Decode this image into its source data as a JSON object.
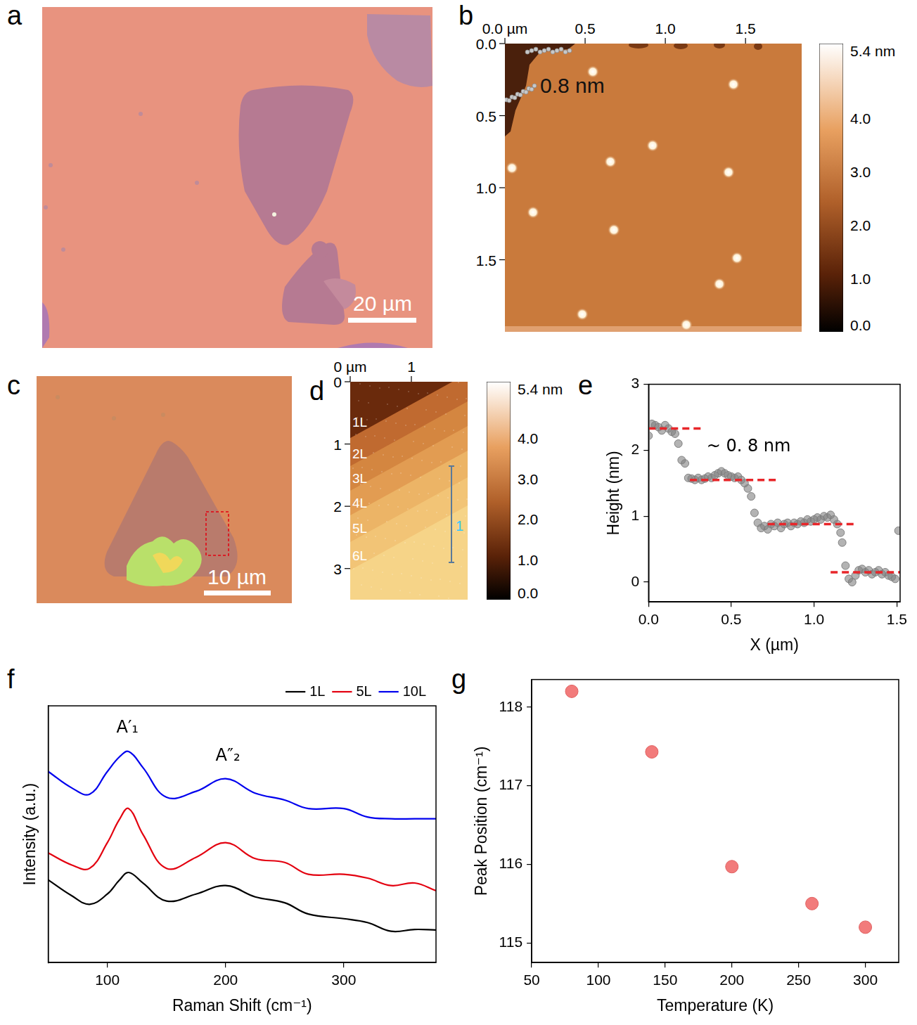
{
  "images": [
    {
      "panel": "a",
      "type": "optical",
      "scale_bar": "20 µm"
    },
    {
      "panel": "b",
      "type": "afm",
      "xlim": [
        0,
        1.85
      ],
      "xticks": [
        {
          "value": 0,
          "label": "0.0 µm"
        },
        0.5,
        {
          "value": 1,
          "label": "1.0"
        },
        1.5
      ],
      "ylim": [
        0,
        2.0
      ],
      "yticks": [
        {
          "value": 0,
          "label": "0.0"
        },
        0.5,
        {
          "value": 1,
          "label": "1.0"
        },
        1.5
      ],
      "annotation": "0.8 nm",
      "colorbar": {
        "range": [
          0,
          5.4
        ],
        "ticks": [
          {
            "value": 5.4,
            "label": "5.4 nm"
          },
          {
            "value": 4,
            "label": "4.0"
          },
          {
            "value": 3,
            "label": "3.0"
          },
          {
            "value": 2,
            "label": "2.0"
          },
          {
            "value": 1,
            "label": "1.0"
          },
          {
            "value": 0,
            "label": "0.0"
          }
        ]
      }
    },
    {
      "panel": "c",
      "type": "optical",
      "scale_bar": "10 µm"
    },
    {
      "panel": "d",
      "type": "afm",
      "xlim": [
        0,
        1.92
      ],
      "xticks": [
        {
          "value": 0,
          "label": "0 µm"
        },
        1
      ],
      "ylim": [
        0,
        3.5
      ],
      "yticks": [
        0,
        1,
        2,
        3
      ],
      "layers": [
        "1L",
        "2L",
        "3L",
        "4L",
        "5L",
        "6L"
      ],
      "profile_label": "1",
      "colorbar": {
        "range": [
          0,
          5.4
        ],
        "ticks": [
          {
            "value": 5.4,
            "label": "5.4 nm"
          },
          {
            "value": 4,
            "label": "4.0"
          },
          {
            "value": 3,
            "label": "3.0"
          },
          {
            "value": 2,
            "label": "2.0"
          },
          {
            "value": 1,
            "label": "1.0"
          },
          {
            "value": 0,
            "label": "0.0"
          }
        ]
      }
    }
  ],
  "chart_data": [
    {
      "panel": "e",
      "type": "scatter",
      "x_label": "X (µm)",
      "y_label": "Height (nm)",
      "x": [
        0.0,
        0.02,
        0.04,
        0.06,
        0.08,
        0.1,
        0.12,
        0.14,
        0.16,
        0.18,
        0.2,
        0.22,
        0.24,
        0.26,
        0.28,
        0.3,
        0.32,
        0.34,
        0.36,
        0.38,
        0.4,
        0.42,
        0.44,
        0.46,
        0.48,
        0.5,
        0.52,
        0.54,
        0.56,
        0.58,
        0.6,
        0.62,
        0.64,
        0.66,
        0.68,
        0.7,
        0.72,
        0.74,
        0.76,
        0.78,
        0.8,
        0.82,
        0.84,
        0.86,
        0.88,
        0.9,
        0.92,
        0.94,
        0.96,
        0.98,
        1.0,
        1.02,
        1.04,
        1.06,
        1.08,
        1.1,
        1.12,
        1.14,
        1.16,
        1.17,
        1.19,
        1.21,
        1.23,
        1.25,
        1.27,
        1.29,
        1.31,
        1.33,
        1.35,
        1.37,
        1.39,
        1.41,
        1.43,
        1.45,
        1.47,
        1.49,
        1.51
      ],
      "values": [
        2.22,
        2.4,
        2.38,
        2.35,
        2.3,
        2.38,
        2.33,
        2.28,
        2.25,
        2.1,
        1.85,
        1.8,
        1.58,
        1.57,
        1.55,
        1.58,
        1.55,
        1.57,
        1.6,
        1.58,
        1.62,
        1.65,
        1.68,
        1.65,
        1.62,
        1.6,
        1.58,
        1.6,
        1.55,
        1.5,
        1.42,
        1.3,
        1.05,
        0.9,
        0.82,
        0.85,
        0.8,
        0.88,
        0.85,
        0.9,
        0.82,
        0.88,
        0.9,
        0.85,
        0.9,
        0.88,
        0.92,
        0.9,
        0.95,
        0.92,
        0.95,
        0.98,
        0.95,
        1.0,
        0.98,
        1.02,
        0.95,
        0.88,
        0.75,
        0.6,
        0.25,
        0.05,
        0.0,
        0.1,
        0.18,
        0.2,
        0.15,
        0.18,
        0.12,
        0.15,
        0.18,
        0.12,
        0.15,
        0.1,
        0.08,
        0.05,
        0.78
      ],
      "color": "#808080",
      "marker": "circle",
      "levels": [
        {
          "x": [
            0,
            0.32
          ],
          "y": 2.33,
          "color": "#e8262a",
          "line_style": "dashed"
        },
        {
          "x": [
            0.25,
            0.78
          ],
          "y": 1.55,
          "color": "#e8262a",
          "line_style": "dashed"
        },
        {
          "x": [
            0.72,
            1.25
          ],
          "y": 0.88,
          "color": "#e8262a",
          "line_style": "dashed"
        },
        {
          "x": [
            1.1,
            1.52
          ],
          "y": 0.15,
          "color": "#e8262a",
          "line_style": "dashed"
        }
      ],
      "annotations": [
        {
          "text": "~ 0. 8 nm",
          "x": 0.35,
          "y": 2.05
        }
      ],
      "xlim": [
        0,
        1.52
      ],
      "xticks": [
        {
          "value": 0,
          "label": "0.0"
        },
        0.5,
        {
          "value": 1,
          "label": "1.0"
        },
        1.5
      ],
      "ylim": [
        -0.3,
        3
      ],
      "yticks": [
        0,
        1,
        2,
        3
      ],
      "grid": false
    },
    {
      "panel": "f",
      "type": "line",
      "x_label": "Raman Shift (cm⁻¹)",
      "y_label": "Intensity (a.u.)",
      "x": [
        50,
        70,
        85,
        100,
        110,
        118,
        130,
        150,
        175,
        200,
        225,
        250,
        270,
        300,
        320,
        340,
        360,
        378
      ],
      "series": [
        {
          "name": "1L",
          "color": "#000000",
          "values": [
            32.2,
            26,
            22.7,
            26.7,
            32,
            35.1,
            31,
            24,
            26.7,
            30,
            25.6,
            23.3,
            18.9,
            17.1,
            15.6,
            12.2,
            12.9,
            12.7
          ]
        },
        {
          "name": "5L",
          "color": "#e3000f",
          "values": [
            42.7,
            38,
            36.7,
            46.7,
            55.6,
            60,
            50,
            36.7,
            41,
            46.7,
            40.5,
            39,
            34.4,
            34.4,
            32.9,
            30,
            31,
            28
          ]
        },
        {
          "name": "10L",
          "color": "#0000ee",
          "values": [
            74.4,
            68,
            65.6,
            74.4,
            80,
            82.2,
            76,
            64.4,
            66.7,
            71.6,
            66,
            63.3,
            60,
            60,
            56.7,
            56,
            56,
            56
          ]
        }
      ],
      "annotations": [
        {
          "text": "A′₁",
          "x": 117,
          "y": 88
        },
        {
          "text": "A″₂",
          "x": 202,
          "y": 77
        }
      ],
      "xlim": [
        50,
        378
      ],
      "xticks": [
        100,
        200,
        300
      ],
      "ylim": [
        0,
        100
      ],
      "tick_labels": "x",
      "legend": "top-right",
      "grid": false
    },
    {
      "panel": "g",
      "type": "scatter",
      "x_label": "Temperature (K)",
      "y_label": "Peak Position (cm⁻¹)",
      "x": [
        80,
        140,
        200,
        260,
        300
      ],
      "values": [
        118.2,
        117.43,
        115.97,
        115.5,
        115.2
      ],
      "color": "#f27b7b",
      "marker": "circle",
      "xlim": [
        50,
        325
      ],
      "xticks": [
        50,
        100,
        150,
        200,
        250,
        300
      ],
      "ylim": [
        114.75,
        118.35
      ],
      "yticks": [
        115,
        116,
        117,
        118
      ],
      "grid": false
    }
  ]
}
